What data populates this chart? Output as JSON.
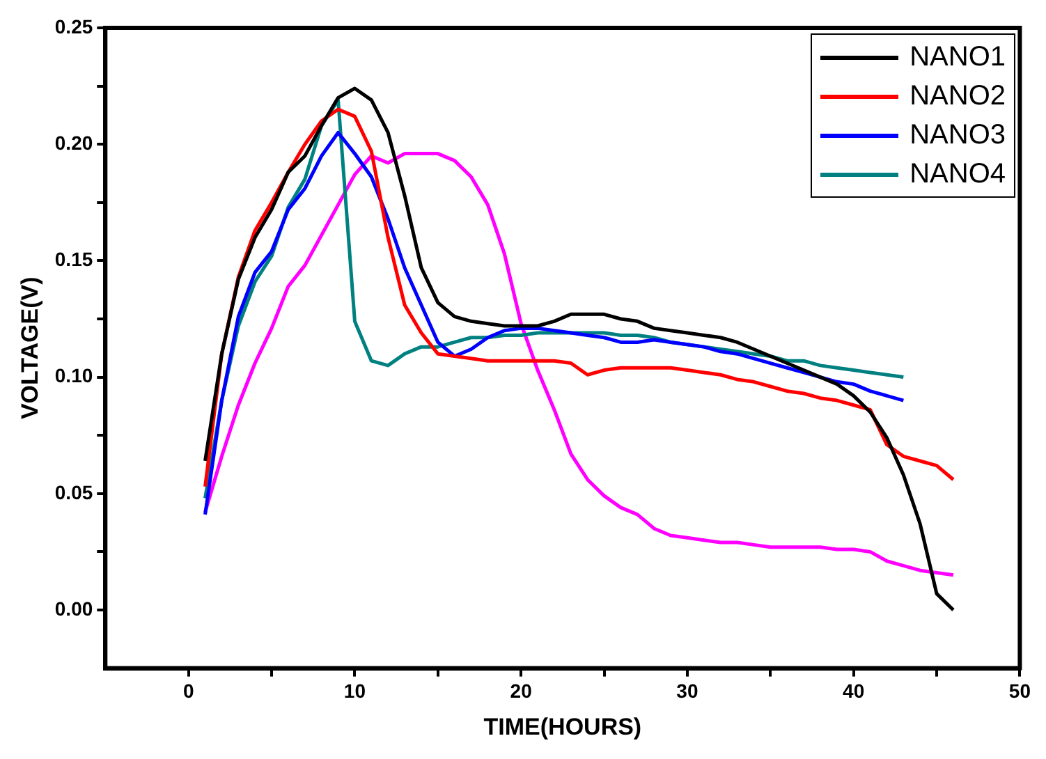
{
  "chart_data": {
    "type": "line",
    "xlabel": "TIME(HOURS)",
    "ylabel": "VOLTAGE(V)",
    "x": [
      1,
      2,
      3,
      4,
      5,
      6,
      7,
      8,
      9,
      10,
      11,
      12,
      13,
      14,
      15,
      16,
      17,
      18,
      19,
      20,
      21,
      22,
      23,
      24,
      25,
      26,
      27,
      28,
      29,
      30,
      31,
      32,
      33,
      34,
      35,
      36,
      37,
      38,
      39,
      40,
      41,
      42,
      43,
      44,
      45,
      46
    ],
    "xlim": [
      -5,
      50
    ],
    "xticks": [
      0,
      {
        "value": 5,
        "label": null
      },
      10,
      {
        "value": 15,
        "label": null
      },
      20,
      {
        "value": 25,
        "label": null
      },
      30,
      {
        "value": 35,
        "label": null
      },
      40,
      {
        "value": 45,
        "label": null
      },
      50
    ],
    "ylim": [
      -0.025,
      0.25
    ],
    "yticks": [
      {
        "value": 0,
        "label": "0.00"
      },
      {
        "value": 0.025,
        "label": null
      },
      {
        "value": 0.05,
        "label": "0.05"
      },
      {
        "value": 0.075,
        "label": null
      },
      {
        "value": 0.1,
        "label": "0.10"
      },
      {
        "value": 0.125,
        "label": null
      },
      {
        "value": 0.15,
        "label": "0.15"
      },
      {
        "value": 0.175,
        "label": null
      },
      {
        "value": 0.2,
        "label": "0.20"
      },
      {
        "value": 0.225,
        "label": null
      },
      {
        "value": 0.25,
        "label": "0.25"
      }
    ],
    "grid": false,
    "legend": "top right",
    "marker": "none",
    "line_style": "solid",
    "series": [
      {
        "name": "NANO1",
        "color": "#000000",
        "values": [
          0.064,
          0.11,
          0.142,
          0.16,
          0.172,
          0.188,
          0.195,
          0.208,
          0.22,
          0.224,
          0.219,
          0.205,
          0.178,
          0.147,
          0.132,
          0.126,
          0.124,
          0.123,
          0.122,
          0.122,
          0.122,
          0.124,
          0.127,
          0.127,
          0.127,
          0.125,
          0.124,
          0.121,
          0.12,
          0.119,
          0.118,
          0.117,
          0.115,
          0.112,
          0.109,
          0.106,
          0.103,
          0.1,
          0.097,
          0.092,
          0.085,
          0.074,
          0.058,
          0.037,
          0.007,
          0.0
        ]
      },
      {
        "name": "NANO2",
        "color": "#ff0000",
        "values": [
          0.053,
          0.11,
          0.143,
          0.163,
          0.175,
          0.188,
          0.2,
          0.21,
          0.215,
          0.212,
          0.197,
          0.16,
          0.131,
          0.119,
          0.11,
          0.109,
          0.108,
          0.107,
          0.107,
          0.107,
          0.107,
          0.107,
          0.106,
          0.101,
          0.103,
          0.104,
          0.104,
          0.104,
          0.104,
          0.103,
          0.102,
          0.101,
          0.099,
          0.098,
          0.096,
          0.094,
          0.093,
          0.091,
          0.09,
          0.088,
          0.086,
          0.071,
          0.066,
          0.064,
          0.062,
          0.056
        ]
      },
      {
        "name": "NANO3",
        "color": "#0000ff",
        "x": [
          1,
          2,
          3,
          4,
          5,
          6,
          7,
          8,
          9,
          10,
          11,
          12,
          13,
          14,
          15,
          16,
          17,
          18,
          19,
          20,
          21,
          22,
          23,
          24,
          25,
          26,
          27,
          28,
          29,
          30,
          31,
          32,
          33,
          34,
          35,
          36,
          37,
          38,
          39,
          40,
          41,
          42,
          43
        ],
        "values": [
          0.041,
          0.09,
          0.126,
          0.145,
          0.154,
          0.172,
          0.181,
          0.195,
          0.205,
          0.196,
          0.186,
          0.168,
          0.147,
          0.131,
          0.115,
          0.109,
          0.112,
          0.117,
          0.12,
          0.121,
          0.121,
          0.12,
          0.119,
          0.118,
          0.117,
          0.115,
          0.115,
          0.116,
          0.115,
          0.114,
          0.113,
          0.111,
          0.11,
          0.108,
          0.106,
          0.104,
          0.102,
          0.1,
          0.098,
          0.097,
          0.094,
          0.092,
          0.09
        ]
      },
      {
        "name": "NANO4",
        "color": "#008080",
        "x": [
          1,
          2,
          3,
          4,
          5,
          6,
          7,
          8,
          9,
          10,
          11,
          12,
          13,
          14,
          15,
          16,
          17,
          18,
          19,
          20,
          21,
          22,
          23,
          24,
          25,
          26,
          27,
          28,
          29,
          30,
          31,
          32,
          33,
          34,
          35,
          36,
          37,
          38,
          39,
          40,
          41,
          42,
          43
        ],
        "values": [
          0.048,
          0.09,
          0.122,
          0.141,
          0.152,
          0.173,
          0.185,
          0.208,
          0.219,
          0.124,
          0.107,
          0.105,
          0.11,
          0.113,
          0.113,
          0.115,
          0.117,
          0.117,
          0.118,
          0.118,
          0.119,
          0.119,
          0.119,
          0.119,
          0.119,
          0.118,
          0.118,
          0.117,
          0.115,
          0.114,
          0.113,
          0.112,
          0.111,
          0.11,
          0.109,
          0.107,
          0.107,
          0.105,
          0.104,
          0.103,
          0.102,
          0.101,
          0.1
        ]
      },
      {
        "color": "#ff00ff",
        "values": [
          0.042,
          0.066,
          0.088,
          0.106,
          0.121,
          0.139,
          0.148,
          0.161,
          0.174,
          0.187,
          0.195,
          0.192,
          0.196,
          0.196,
          0.196,
          0.193,
          0.186,
          0.174,
          0.153,
          0.123,
          0.103,
          0.086,
          0.067,
          0.056,
          0.049,
          0.044,
          0.041,
          0.035,
          0.032,
          0.031,
          0.03,
          0.029,
          0.029,
          0.028,
          0.027,
          0.027,
          0.027,
          0.027,
          0.026,
          0.026,
          0.025,
          0.021,
          0.019,
          0.017,
          0.016,
          0.015
        ]
      }
    ]
  }
}
